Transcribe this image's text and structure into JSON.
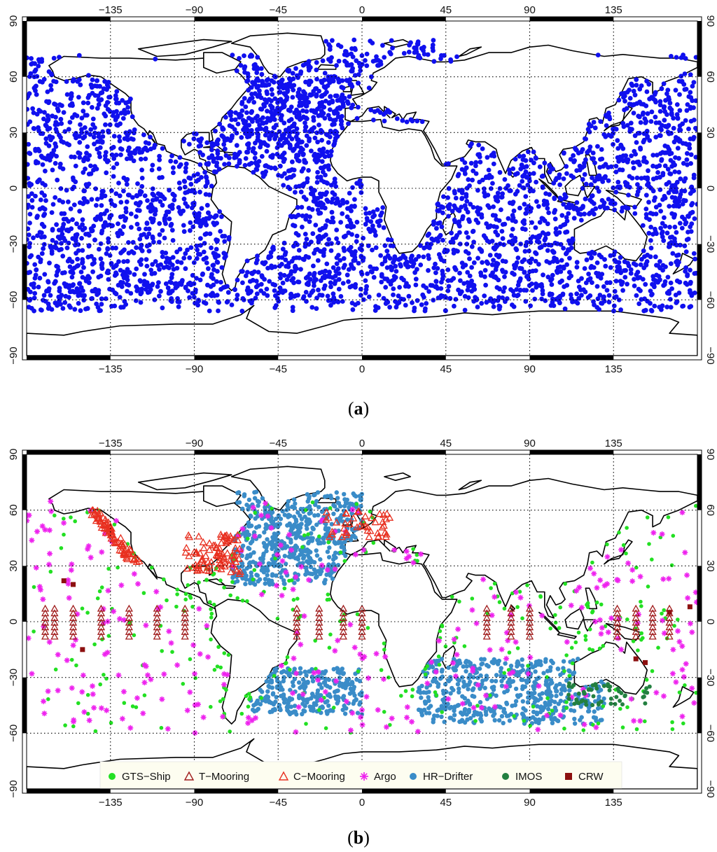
{
  "panels": [
    {
      "id": "a",
      "caption_open": "(",
      "caption_letter": "a",
      "caption_close": ")",
      "x_ticks": [
        "-135",
        "-90",
        "-45",
        "0",
        "45",
        "90",
        "135"
      ],
      "y_ticks": [
        "90",
        "60",
        "30",
        "0",
        "-30",
        "-60",
        "-90"
      ],
      "x_tick_values": [
        -135,
        -90,
        -45,
        0,
        45,
        90,
        135
      ],
      "y_tick_values": [
        90,
        60,
        30,
        0,
        -30,
        -60,
        -90
      ],
      "lon_range": [
        -180,
        180
      ],
      "lat_range": [
        -90,
        90
      ],
      "grid": "dotted",
      "point_color": "#1010ee"
    },
    {
      "id": "b",
      "caption_open": "(",
      "caption_letter": "b",
      "caption_close": ")",
      "x_ticks": [
        "-135",
        "-90",
        "-45",
        "0",
        "45",
        "90",
        "135"
      ],
      "y_ticks": [
        "90",
        "60",
        "30",
        "0",
        "-30",
        "-60",
        "-90"
      ],
      "x_tick_values": [
        -135,
        -90,
        -45,
        0,
        45,
        90,
        135
      ],
      "y_tick_values": [
        90,
        60,
        30,
        0,
        -30,
        -60,
        -90
      ],
      "lon_range": [
        -180,
        180
      ],
      "lat_range": [
        -90,
        90
      ],
      "grid": "dotted",
      "legend_placement": "bottom",
      "legend": [
        {
          "label": "GTS−Ship",
          "marker": "circle",
          "color": "#22e022"
        },
        {
          "label": "T−Mooring",
          "marker": "triangle-open",
          "color": "#a01c1c"
        },
        {
          "label": "C−Mooring",
          "marker": "triangle-open",
          "color": "#e83020"
        },
        {
          "label": "Argo",
          "marker": "asterisk",
          "color": "#ee22ee"
        },
        {
          "label": "HR−Drifter",
          "marker": "circle",
          "color": "#3a8cc8"
        },
        {
          "label": "IMOS",
          "marker": "circle",
          "color": "#238040"
        },
        {
          "label": "CRW",
          "marker": "square",
          "color": "#8c1010"
        }
      ]
    }
  ]
}
